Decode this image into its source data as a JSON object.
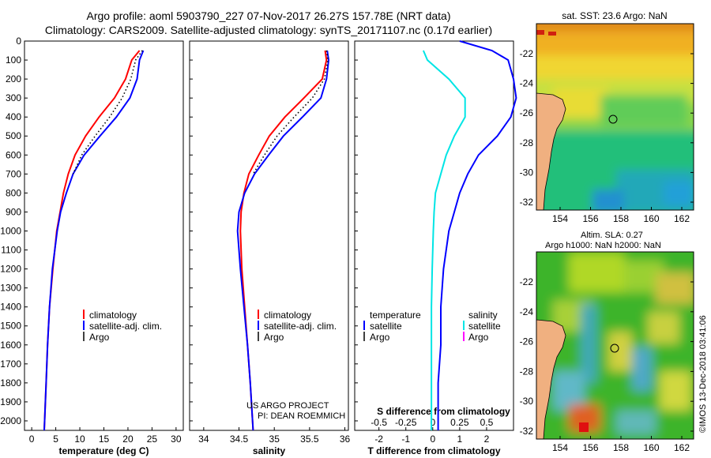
{
  "header": {
    "line1": "Argo profile: aoml 5903790_227 07-Nov-2017 26.27S 157.78E (NRT data)",
    "line2": "Climatology: CARS2009. Satellite-adjusted climatology: synTS_20171107.nc (0.17d earlier)"
  },
  "legends": {
    "temperature": [
      "climatology",
      "satellite-adj. clim.",
      "Argo"
    ],
    "salinity": [
      "climatology",
      "satellite-adj. clim.",
      "Argo"
    ],
    "difference": {
      "temp_title": "temperature",
      "temp_items": [
        "satellite",
        "Argo"
      ],
      "sal_title": "salinity",
      "sal_items": [
        "satellite",
        "Argo"
      ]
    }
  },
  "credit": {
    "line1": "US ARGO PROJECT",
    "line2": "PI: DEAN ROEMMICH"
  },
  "side": {
    "sst_title": "sat. SST: 23.6 Argo: NaN",
    "sla_title1": "Altim. SLA: 0.27",
    "sla_title2": "Argo h1000: NaN h2000: NaN",
    "imos": "©IMOS 13-Dec-2018 03:41:06"
  },
  "colors": {
    "climatology": "#ff0000",
    "satellite": "#0000ff",
    "argo": "#000000",
    "sal_satellite": "#00e5e5",
    "sal_argo": "#ff00ff",
    "land": "#f0b080"
  },
  "chart_data": [
    {
      "type": "line",
      "xlabel": "temperature (deg C)",
      "xticks": [
        0,
        5,
        10,
        15,
        20,
        25,
        30
      ],
      "xlim": [
        -1.5,
        31.5
      ],
      "ylim": [
        2050,
        0
      ],
      "yticks": [
        0,
        100,
        200,
        300,
        400,
        500,
        600,
        700,
        800,
        900,
        1000,
        1100,
        1200,
        1300,
        1400,
        1500,
        1600,
        1700,
        1800,
        1900,
        2000
      ],
      "series": [
        {
          "name": "climatology",
          "color": "#ff0000",
          "depth": [
            50,
            100,
            200,
            300,
            400,
            500,
            600,
            700,
            800,
            900,
            1000,
            1200,
            1400,
            1600,
            1800,
            2050
          ],
          "values": [
            22.4,
            20.8,
            19.5,
            17.2,
            14.0,
            11.2,
            9.0,
            7.6,
            6.6,
            5.9,
            5.2,
            4.4,
            3.7,
            3.3,
            3.0,
            2.6
          ]
        },
        {
          "name": "satellite-adj. clim.",
          "color": "#0000ff",
          "depth": [
            50,
            100,
            200,
            300,
            400,
            500,
            600,
            700,
            800,
            900,
            1000,
            1200,
            1400,
            1600,
            1800,
            2050
          ],
          "values": [
            23.2,
            22.4,
            21.9,
            20.4,
            17.6,
            14.2,
            10.9,
            8.6,
            7.2,
            6.0,
            5.3,
            4.3,
            3.7,
            3.3,
            3.0,
            2.6
          ]
        },
        {
          "name": "Argo",
          "color": "#000000",
          "depth": [
            50,
            100,
            200,
            300,
            400,
            500,
            600,
            700
          ],
          "values": [
            23.0,
            21.6,
            20.6,
            18.8,
            16.2,
            13.2,
            10.4,
            8.6
          ]
        }
      ]
    },
    {
      "type": "line",
      "xlabel": "salinity",
      "xticks": [
        34,
        34.5,
        35,
        35.5,
        36
      ],
      "xlim": [
        33.8,
        36.05
      ],
      "ylim": [
        2050,
        0
      ],
      "series": [
        {
          "name": "climatology",
          "color": "#ff0000",
          "depth": [
            50,
            100,
            200,
            300,
            400,
            500,
            600,
            700,
            800,
            900,
            1000,
            1200,
            1400,
            1600,
            1800,
            2050
          ],
          "values": [
            35.72,
            35.74,
            35.68,
            35.42,
            35.15,
            34.93,
            34.78,
            34.64,
            34.57,
            34.53,
            34.52,
            34.54,
            34.58,
            34.62,
            34.66,
            34.7
          ]
        },
        {
          "name": "satellite-adj. clim.",
          "color": "#0000ff",
          "depth": [
            50,
            100,
            200,
            300,
            400,
            500,
            600,
            700,
            800,
            900,
            1000,
            1200,
            1400,
            1600,
            1800,
            2050
          ],
          "values": [
            35.75,
            35.77,
            35.74,
            35.66,
            35.4,
            35.13,
            34.92,
            34.72,
            34.58,
            34.5,
            34.48,
            34.52,
            34.57,
            34.62,
            34.66,
            34.7
          ]
        },
        {
          "name": "Argo",
          "color": "#000000",
          "depth": [
            50,
            100,
            200,
            300,
            400,
            500,
            600,
            700
          ],
          "values": [
            35.74,
            35.76,
            35.71,
            35.54,
            35.28,
            35.04,
            34.86,
            34.7
          ]
        }
      ]
    },
    {
      "type": "line",
      "xlabel": "T difference from climatology",
      "xticks": [
        -2,
        -1,
        0,
        1,
        2
      ],
      "xlim": [
        -2.9,
        3.0
      ],
      "top_label": "S difference from climatology",
      "top_ticks": [
        "-0.5",
        "-0.25",
        "0",
        "0.25",
        "0.5"
      ],
      "ylim": [
        2050,
        0
      ],
      "series": [
        {
          "name": "satellite",
          "color": "#0000ff",
          "depth": [
            0,
            50,
            100,
            200,
            300,
            400,
            500,
            600,
            700,
            800,
            900,
            1000,
            1200,
            1400,
            1600,
            1800,
            2050
          ],
          "values": [
            1.0,
            2.2,
            2.8,
            3.0,
            3.1,
            2.9,
            2.4,
            1.7,
            1.3,
            1.0,
            0.8,
            0.6,
            0.4,
            0.3,
            0.3,
            0.2,
            0.2
          ]
        },
        {
          "name": "satellite (salinity)",
          "color": "#00e5e5",
          "depth": [
            50,
            100,
            200,
            300,
            400,
            500,
            600,
            700,
            800,
            900,
            1000,
            1200,
            1400,
            1600,
            1800,
            2050
          ],
          "values": [
            -0.35,
            -0.2,
            0.6,
            1.2,
            1.2,
            0.8,
            0.5,
            0.3,
            0.1,
            0.05,
            0.02,
            -0.02,
            -0.05,
            -0.05,
            -0.05,
            -0.05
          ]
        }
      ]
    }
  ],
  "maps": {
    "sst": {
      "xticks": [
        "154",
        "156",
        "158",
        "160",
        "162"
      ],
      "yticks": [
        "-22",
        "-24",
        "-26",
        "-28",
        "-30",
        "-32"
      ]
    },
    "sla": {
      "xticks": [
        "154",
        "156",
        "158",
        "160",
        "162"
      ],
      "yticks": [
        "-22",
        "-24",
        "-26",
        "-28",
        "-30",
        "-32"
      ]
    }
  }
}
